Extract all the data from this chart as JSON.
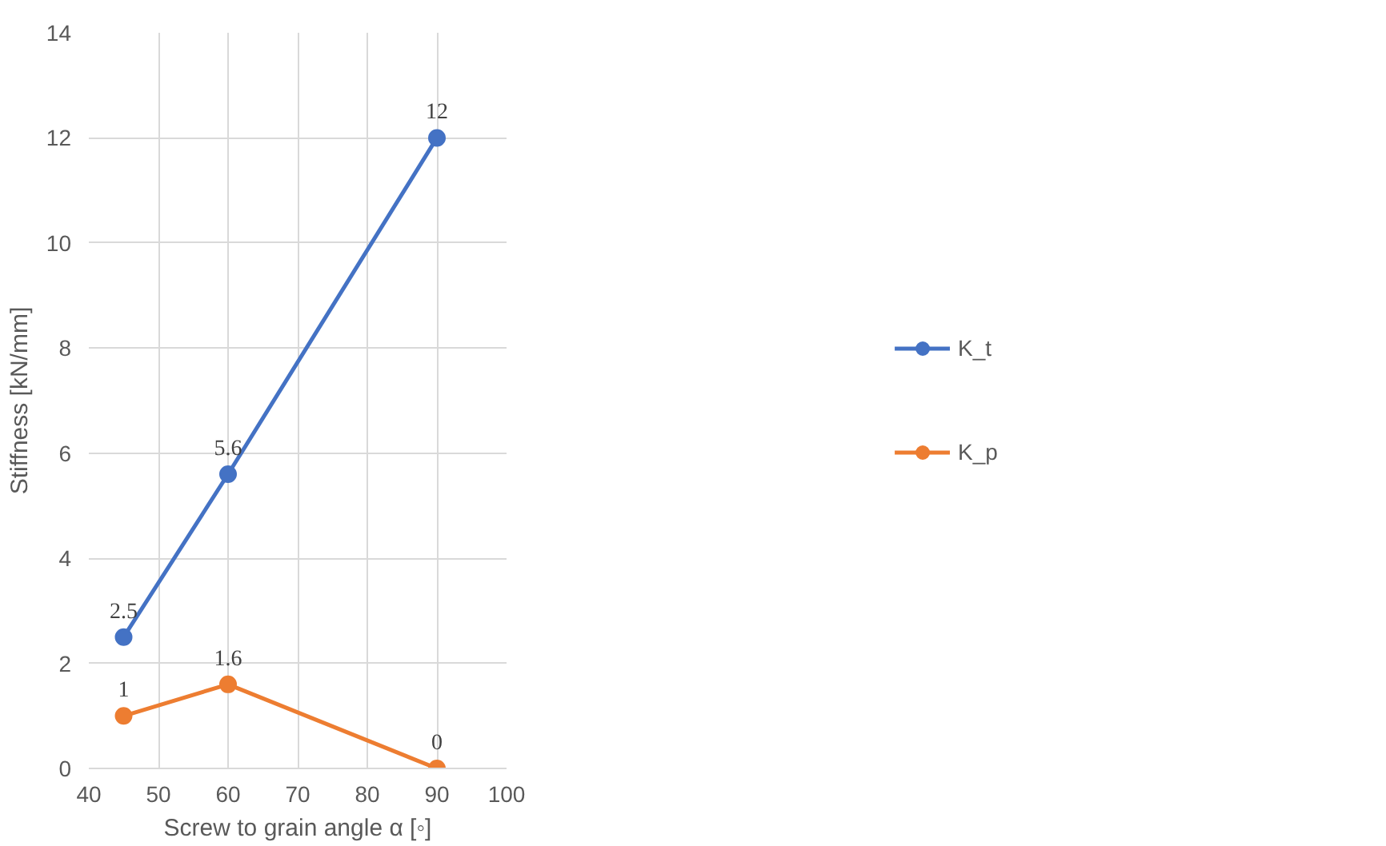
{
  "chart_data": {
    "type": "line",
    "xlabel": "Screw to grain angle α [◦]",
    "ylabel": "Stiffness [kN/mm]",
    "x": [
      45,
      60,
      90
    ],
    "series": [
      {
        "name": "K_t",
        "color": "#4472c4",
        "values": [
          2.5,
          5.6,
          12
        ]
      },
      {
        "name": "K_p",
        "color": "#ed7d31",
        "values": [
          1,
          1.6,
          0
        ]
      }
    ],
    "xlim": [
      40,
      100
    ],
    "xticks": [
      40,
      50,
      60,
      70,
      80,
      90,
      100
    ],
    "ylim": [
      0,
      14
    ],
    "yticks": [
      0,
      2,
      4,
      6,
      8,
      10,
      12,
      14
    ],
    "grid": true,
    "legend": "right",
    "marker": "circle",
    "line_style": "solid",
    "data_labels": true
  }
}
